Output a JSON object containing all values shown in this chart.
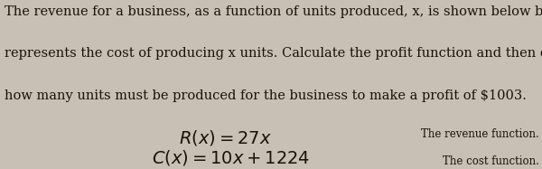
{
  "background_color": "#c8c0b5",
  "text_color": "#1a1208",
  "body_text_line1": "The revenue for a business, as a function of units produced, x, is shown below by R(x).",
  "body_text_line2": "represents the cost of producing x units. Calculate the profit function and then determi",
  "body_text_line3": "how many units must be produced for the business to make a profit of $1003.",
  "formula1_left": "$R(x) = 27x$",
  "formula1_right": "The revenue function.",
  "formula2_left": "$C(x) = 10x + 1224$",
  "formula2_right": "The cost function.",
  "body_fontsize": 10.5,
  "formula_fontsize": 14,
  "annotation_fontsize": 8.5,
  "fig_width": 6.0,
  "fig_height": 1.87,
  "dpi": 100
}
